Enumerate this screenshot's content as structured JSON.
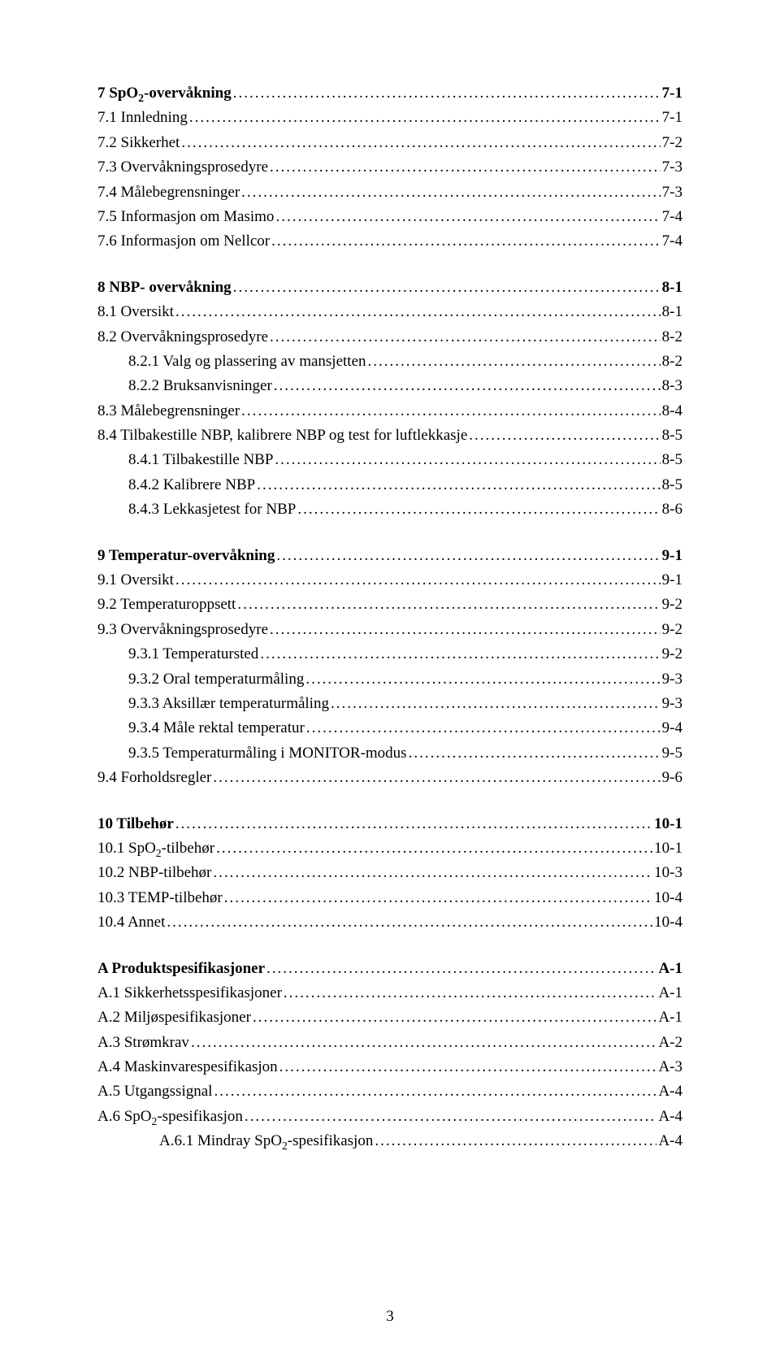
{
  "page_number": "3",
  "sections": [
    {
      "entries": [
        {
          "level": 0,
          "bold": true,
          "label": "7 SpO₂-overvåkning",
          "page": "7-1"
        },
        {
          "level": 1,
          "bold": false,
          "label": "7.1 Innledning",
          "page": "7-1"
        },
        {
          "level": 1,
          "bold": false,
          "label": "7.2 Sikkerhet",
          "page": "7-2"
        },
        {
          "level": 1,
          "bold": false,
          "label": "7.3 Overvåkningsprosedyre",
          "page": "7-3"
        },
        {
          "level": 1,
          "bold": false,
          "label": "7.4 Målebegrensninger",
          "page": "7-3"
        },
        {
          "level": 1,
          "bold": false,
          "label": "7.5 Informasjon om Masimo",
          "page": "7-4"
        },
        {
          "level": 1,
          "bold": false,
          "label": "7.6 Informasjon om Nellcor",
          "page": "7-4"
        }
      ]
    },
    {
      "entries": [
        {
          "level": 0,
          "bold": true,
          "label": "8 NBP- overvåkning",
          "page": "8-1"
        },
        {
          "level": 1,
          "bold": false,
          "label": "8.1 Oversikt",
          "page": "8-1"
        },
        {
          "level": 1,
          "bold": false,
          "label": "8.2 Overvåkningsprosedyre",
          "page": "8-2"
        },
        {
          "level": 2,
          "bold": false,
          "label": "8.2.1 Valg og plassering av mansjetten",
          "page": "8-2"
        },
        {
          "level": 2,
          "bold": false,
          "label": "8.2.2 Bruksanvisninger",
          "page": "8-3"
        },
        {
          "level": 1,
          "bold": false,
          "label": "8.3 Målebegrensninger",
          "page": "8-4"
        },
        {
          "level": 1,
          "bold": false,
          "label": "8.4 Tilbakestille NBP, kalibrere NBP og test for luftlekkasje",
          "page": "8-5"
        },
        {
          "level": 2,
          "bold": false,
          "label": "8.4.1 Tilbakestille NBP",
          "page": "8-5"
        },
        {
          "level": 2,
          "bold": false,
          "label": "8.4.2 Kalibrere NBP",
          "page": "8-5"
        },
        {
          "level": 2,
          "bold": false,
          "label": "8.4.3 Lekkasjetest for NBP",
          "page": "8-6"
        }
      ]
    },
    {
      "entries": [
        {
          "level": 0,
          "bold": true,
          "label": "9 Temperatur-overvåkning",
          "page": "9-1"
        },
        {
          "level": 1,
          "bold": false,
          "label": "9.1 Oversikt",
          "page": "9-1"
        },
        {
          "level": 1,
          "bold": false,
          "label": "9.2 Temperaturoppsett",
          "page": "9-2"
        },
        {
          "level": 1,
          "bold": false,
          "label": "9.3 Overvåkningsprosedyre",
          "page": "9-2"
        },
        {
          "level": 2,
          "bold": false,
          "label": "9.3.1 Temperatursted",
          "page": "9-2"
        },
        {
          "level": 2,
          "bold": false,
          "label": "9.3.2 Oral temperaturmåling",
          "page": "9-3"
        },
        {
          "level": 2,
          "bold": false,
          "label": "9.3.3 Aksillær temperaturmåling",
          "page": "9-3"
        },
        {
          "level": 2,
          "bold": false,
          "label": "9.3.4 Måle rektal temperatur",
          "page": "9-4"
        },
        {
          "level": 2,
          "bold": false,
          "label": "9.3.5 Temperaturmåling i MONITOR-modus",
          "page": "9-5"
        },
        {
          "level": 1,
          "bold": false,
          "label": "9.4 Forholdsregler",
          "page": "9-6"
        }
      ]
    },
    {
      "entries": [
        {
          "level": 0,
          "bold": true,
          "label": "10 Tilbehør",
          "page": "10-1"
        },
        {
          "level": 1,
          "bold": false,
          "label": "10.1 SpO₂-tilbehør",
          "page": "10-1"
        },
        {
          "level": 1,
          "bold": false,
          "label": "10.2 NBP-tilbehør",
          "page": "10-3"
        },
        {
          "level": 1,
          "bold": false,
          "label": "10.3 TEMP-tilbehør",
          "page": "10-4"
        },
        {
          "level": 1,
          "bold": false,
          "label": "10.4 Annet",
          "page": "10-4"
        }
      ]
    },
    {
      "entries": [
        {
          "level": 0,
          "bold": true,
          "label": "A Produktspesifikasjoner",
          "page": "A-1"
        },
        {
          "level": 1,
          "bold": false,
          "label": "A.1 Sikkerhetsspesifikasjoner",
          "page": "A-1"
        },
        {
          "level": 1,
          "bold": false,
          "label": "A.2 Miljøspesifikasjoner",
          "page": "A-1"
        },
        {
          "level": 1,
          "bold": false,
          "label": "A.3 Strømkrav",
          "page": "A-2"
        },
        {
          "level": 1,
          "bold": false,
          "label": "A.4 Maskinvarespesifikasjon",
          "page": "A-3"
        },
        {
          "level": 1,
          "bold": false,
          "label": "A.5 Utgangssignal",
          "page": "A-4"
        },
        {
          "level": 1,
          "bold": false,
          "label": "A.6 SpO₂-spesifikasjon",
          "page": "A-4"
        },
        {
          "level": 3,
          "bold": false,
          "label": "A.6.1 Mindray SpO₂-spesifikasjon",
          "page": "A-4"
        }
      ]
    }
  ]
}
